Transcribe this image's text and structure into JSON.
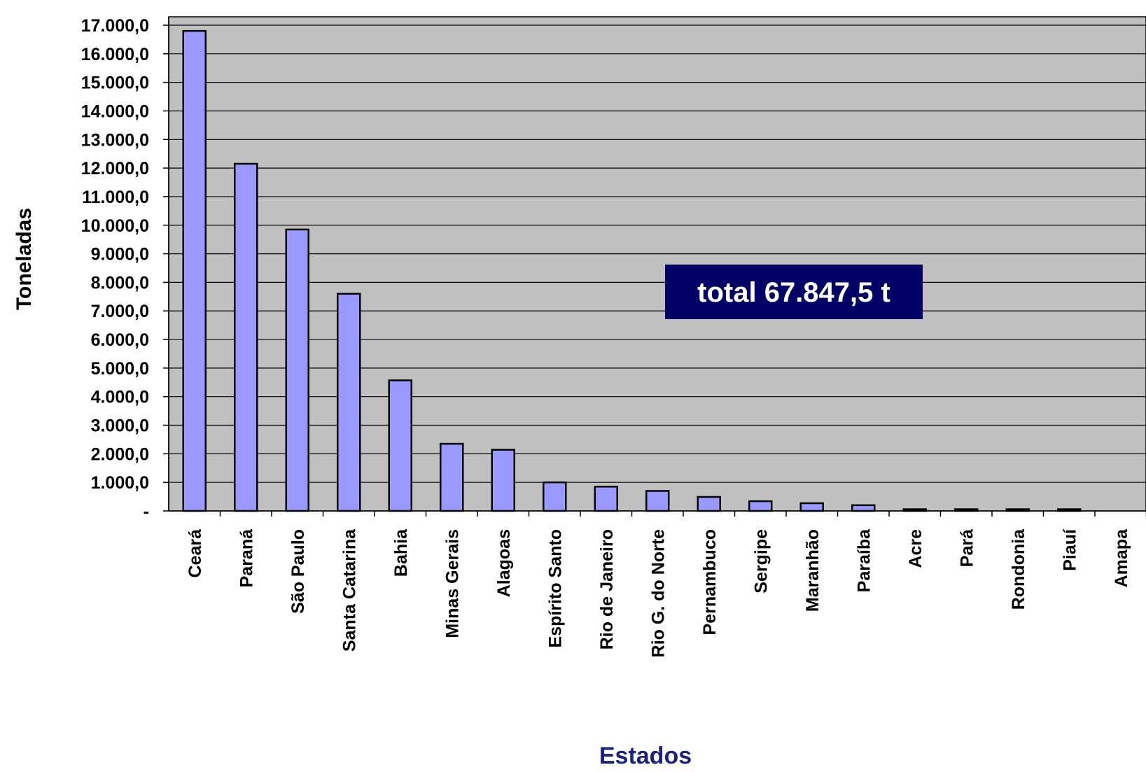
{
  "chart_data": {
    "type": "bar",
    "ylabel": "Toneladas",
    "xlabel": "Estados",
    "ylim": [
      0,
      17000
    ],
    "yticks": [
      {
        "value": 0,
        "label": "-"
      },
      {
        "value": 1000,
        "label": "1.000,0"
      },
      {
        "value": 2000,
        "label": "2.000,0"
      },
      {
        "value": 3000,
        "label": "3.000,0"
      },
      {
        "value": 4000,
        "label": "4.000,0"
      },
      {
        "value": 5000,
        "label": "5.000,0"
      },
      {
        "value": 6000,
        "label": "6.000,0"
      },
      {
        "value": 7000,
        "label": "7.000,0"
      },
      {
        "value": 8000,
        "label": "8.000,0"
      },
      {
        "value": 9000,
        "label": "9.000,0"
      },
      {
        "value": 10000,
        "label": "10.000,0"
      },
      {
        "value": 11000,
        "label": "11.000,0"
      },
      {
        "value": 12000,
        "label": "12.000,0"
      },
      {
        "value": 13000,
        "label": "13.000,0"
      },
      {
        "value": 14000,
        "label": "14.000,0"
      },
      {
        "value": 15000,
        "label": "15.000,0"
      },
      {
        "value": 16000,
        "label": "16.000,0"
      },
      {
        "value": 17000,
        "label": "17.000,0"
      }
    ],
    "categories": [
      "Ceará",
      "Paraná",
      "São Paulo",
      "Santa Catarina",
      "Bahia",
      "Minas Gerais",
      "Alagoas",
      "Espírito Santo",
      "Rio de Janeiro",
      "Rio G. do Norte",
      "Pernambuco",
      "Sergipe",
      "Maranhão",
      "Paraíba",
      "Acre",
      "Pará",
      "Rondonia",
      "Piauí",
      "Amapa"
    ],
    "values": [
      16800,
      12150,
      9850,
      7600,
      4570,
      2350,
      2140,
      1000,
      850,
      700,
      490,
      340,
      270,
      200,
      60,
      60,
      60,
      60,
      0
    ],
    "grid": true,
    "annotation": "total 67.847,5 t",
    "colors": {
      "bar_fill": "#9999ff",
      "bar_stroke": "#000000",
      "plot_bg": "#c0c0c0",
      "annotation_bg": "#000066",
      "annotation_text": "#ffffff",
      "xlabel_color": "#1a237e"
    }
  }
}
